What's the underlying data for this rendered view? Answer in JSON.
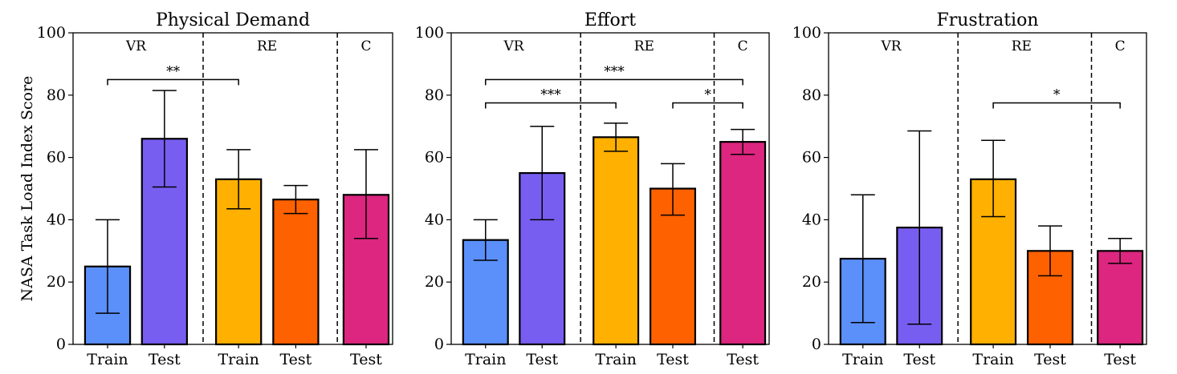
{
  "chart_data": [
    {
      "type": "bar",
      "title": "Physical Demand",
      "ylabel": "NASA Task Load Index Score",
      "ylim": [
        0,
        100
      ],
      "yticks": [
        0,
        20,
        40,
        60,
        80,
        100
      ],
      "groups": [
        "VR",
        "RE",
        "C"
      ],
      "categories": [
        "Train",
        "Test",
        "Train",
        "Test",
        "Test"
      ],
      "bar_groups": [
        "VR",
        "VR",
        "RE",
        "RE",
        "C"
      ],
      "values": [
        25,
        66,
        53,
        46.5,
        48
      ],
      "err_low": [
        10,
        50.5,
        43.5,
        42,
        34
      ],
      "err_high": [
        40,
        81.5,
        62.5,
        51,
        62.5
      ],
      "colors": [
        "#5b8ff9",
        "#785ef0",
        "#ffb000",
        "#fe6100",
        "#dc267f"
      ],
      "significance": [
        {
          "from": 0,
          "to": 2,
          "y": 85,
          "label": "**"
        }
      ]
    },
    {
      "type": "bar",
      "title": "Effort",
      "ylabel": "",
      "ylim": [
        0,
        100
      ],
      "yticks": [
        0,
        20,
        40,
        60,
        80,
        100
      ],
      "groups": [
        "VR",
        "RE",
        "C"
      ],
      "categories": [
        "Train",
        "Test",
        "Train",
        "Test",
        "Test"
      ],
      "bar_groups": [
        "VR",
        "VR",
        "RE",
        "RE",
        "C"
      ],
      "values": [
        33.5,
        55,
        66.5,
        50,
        65
      ],
      "err_low": [
        27,
        40,
        62,
        41.5,
        61
      ],
      "err_high": [
        40,
        70,
        71,
        58,
        69
      ],
      "colors": [
        "#5b8ff9",
        "#785ef0",
        "#ffb000",
        "#fe6100",
        "#dc267f"
      ],
      "significance": [
        {
          "from": 0,
          "to": 4,
          "y": 85,
          "label": "***"
        },
        {
          "from": 0,
          "to": 2,
          "y": 77.5,
          "label": "***"
        },
        {
          "from": 3,
          "to": 4,
          "y": 77.5,
          "label": "*"
        }
      ]
    },
    {
      "type": "bar",
      "title": "Frustration",
      "ylabel": "",
      "ylim": [
        0,
        100
      ],
      "yticks": [
        0,
        20,
        40,
        60,
        80,
        100
      ],
      "groups": [
        "VR",
        "RE",
        "C"
      ],
      "categories": [
        "Train",
        "Test",
        "Train",
        "Test",
        "Test"
      ],
      "bar_groups": [
        "VR",
        "VR",
        "RE",
        "RE",
        "C"
      ],
      "values": [
        27.5,
        37.5,
        53,
        30,
        30
      ],
      "err_low": [
        7,
        6.5,
        41,
        22,
        26
      ],
      "err_high": [
        48,
        68.5,
        65.5,
        38,
        34
      ],
      "colors": [
        "#5b8ff9",
        "#785ef0",
        "#ffb000",
        "#fe6100",
        "#dc267f"
      ],
      "significance": [
        {
          "from": 2,
          "to": 4,
          "y": 77.5,
          "label": "*"
        }
      ]
    }
  ]
}
